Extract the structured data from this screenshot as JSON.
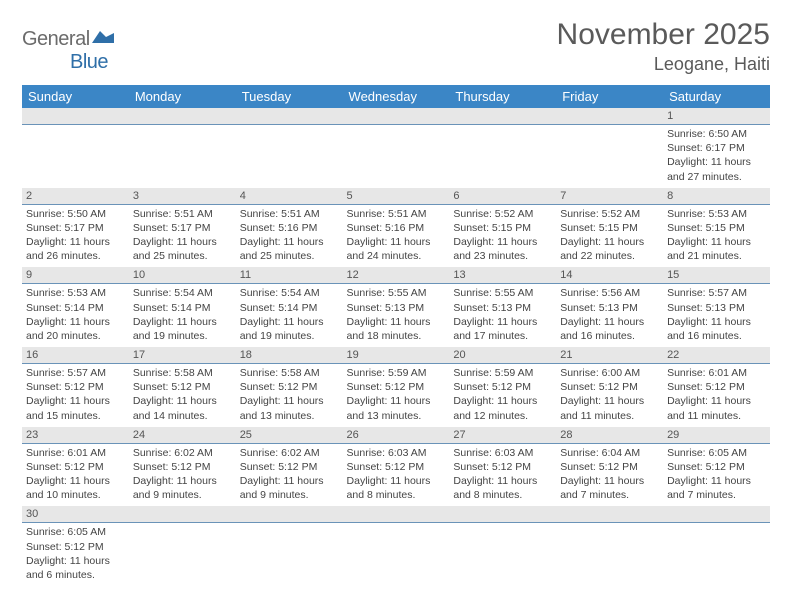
{
  "logo": {
    "text_part1": "General",
    "text_part2": "Blue",
    "icon_color": "#2f6fa8"
  },
  "title": {
    "month": "November 2025",
    "location": "Leogane, Haiti"
  },
  "header_bg": "#3b86c6",
  "daynum_bg": "#e7e7e7",
  "divider_color": "#6a93b8",
  "weekdays": [
    "Sunday",
    "Monday",
    "Tuesday",
    "Wednesday",
    "Thursday",
    "Friday",
    "Saturday"
  ],
  "weeks": [
    [
      null,
      null,
      null,
      null,
      null,
      null,
      {
        "n": "1",
        "sr": "Sunrise: 6:50 AM",
        "ss": "Sunset: 6:17 PM",
        "dl": "Daylight: 11 hours and 27 minutes."
      }
    ],
    [
      {
        "n": "2",
        "sr": "Sunrise: 5:50 AM",
        "ss": "Sunset: 5:17 PM",
        "dl": "Daylight: 11 hours and 26 minutes."
      },
      {
        "n": "3",
        "sr": "Sunrise: 5:51 AM",
        "ss": "Sunset: 5:17 PM",
        "dl": "Daylight: 11 hours and 25 minutes."
      },
      {
        "n": "4",
        "sr": "Sunrise: 5:51 AM",
        "ss": "Sunset: 5:16 PM",
        "dl": "Daylight: 11 hours and 25 minutes."
      },
      {
        "n": "5",
        "sr": "Sunrise: 5:51 AM",
        "ss": "Sunset: 5:16 PM",
        "dl": "Daylight: 11 hours and 24 minutes."
      },
      {
        "n": "6",
        "sr": "Sunrise: 5:52 AM",
        "ss": "Sunset: 5:15 PM",
        "dl": "Daylight: 11 hours and 23 minutes."
      },
      {
        "n": "7",
        "sr": "Sunrise: 5:52 AM",
        "ss": "Sunset: 5:15 PM",
        "dl": "Daylight: 11 hours and 22 minutes."
      },
      {
        "n": "8",
        "sr": "Sunrise: 5:53 AM",
        "ss": "Sunset: 5:15 PM",
        "dl": "Daylight: 11 hours and 21 minutes."
      }
    ],
    [
      {
        "n": "9",
        "sr": "Sunrise: 5:53 AM",
        "ss": "Sunset: 5:14 PM",
        "dl": "Daylight: 11 hours and 20 minutes."
      },
      {
        "n": "10",
        "sr": "Sunrise: 5:54 AM",
        "ss": "Sunset: 5:14 PM",
        "dl": "Daylight: 11 hours and 19 minutes."
      },
      {
        "n": "11",
        "sr": "Sunrise: 5:54 AM",
        "ss": "Sunset: 5:14 PM",
        "dl": "Daylight: 11 hours and 19 minutes."
      },
      {
        "n": "12",
        "sr": "Sunrise: 5:55 AM",
        "ss": "Sunset: 5:13 PM",
        "dl": "Daylight: 11 hours and 18 minutes."
      },
      {
        "n": "13",
        "sr": "Sunrise: 5:55 AM",
        "ss": "Sunset: 5:13 PM",
        "dl": "Daylight: 11 hours and 17 minutes."
      },
      {
        "n": "14",
        "sr": "Sunrise: 5:56 AM",
        "ss": "Sunset: 5:13 PM",
        "dl": "Daylight: 11 hours and 16 minutes."
      },
      {
        "n": "15",
        "sr": "Sunrise: 5:57 AM",
        "ss": "Sunset: 5:13 PM",
        "dl": "Daylight: 11 hours and 16 minutes."
      }
    ],
    [
      {
        "n": "16",
        "sr": "Sunrise: 5:57 AM",
        "ss": "Sunset: 5:12 PM",
        "dl": "Daylight: 11 hours and 15 minutes."
      },
      {
        "n": "17",
        "sr": "Sunrise: 5:58 AM",
        "ss": "Sunset: 5:12 PM",
        "dl": "Daylight: 11 hours and 14 minutes."
      },
      {
        "n": "18",
        "sr": "Sunrise: 5:58 AM",
        "ss": "Sunset: 5:12 PM",
        "dl": "Daylight: 11 hours and 13 minutes."
      },
      {
        "n": "19",
        "sr": "Sunrise: 5:59 AM",
        "ss": "Sunset: 5:12 PM",
        "dl": "Daylight: 11 hours and 13 minutes."
      },
      {
        "n": "20",
        "sr": "Sunrise: 5:59 AM",
        "ss": "Sunset: 5:12 PM",
        "dl": "Daylight: 11 hours and 12 minutes."
      },
      {
        "n": "21",
        "sr": "Sunrise: 6:00 AM",
        "ss": "Sunset: 5:12 PM",
        "dl": "Daylight: 11 hours and 11 minutes."
      },
      {
        "n": "22",
        "sr": "Sunrise: 6:01 AM",
        "ss": "Sunset: 5:12 PM",
        "dl": "Daylight: 11 hours and 11 minutes."
      }
    ],
    [
      {
        "n": "23",
        "sr": "Sunrise: 6:01 AM",
        "ss": "Sunset: 5:12 PM",
        "dl": "Daylight: 11 hours and 10 minutes."
      },
      {
        "n": "24",
        "sr": "Sunrise: 6:02 AM",
        "ss": "Sunset: 5:12 PM",
        "dl": "Daylight: 11 hours and 9 minutes."
      },
      {
        "n": "25",
        "sr": "Sunrise: 6:02 AM",
        "ss": "Sunset: 5:12 PM",
        "dl": "Daylight: 11 hours and 9 minutes."
      },
      {
        "n": "26",
        "sr": "Sunrise: 6:03 AM",
        "ss": "Sunset: 5:12 PM",
        "dl": "Daylight: 11 hours and 8 minutes."
      },
      {
        "n": "27",
        "sr": "Sunrise: 6:03 AM",
        "ss": "Sunset: 5:12 PM",
        "dl": "Daylight: 11 hours and 8 minutes."
      },
      {
        "n": "28",
        "sr": "Sunrise: 6:04 AM",
        "ss": "Sunset: 5:12 PM",
        "dl": "Daylight: 11 hours and 7 minutes."
      },
      {
        "n": "29",
        "sr": "Sunrise: 6:05 AM",
        "ss": "Sunset: 5:12 PM",
        "dl": "Daylight: 11 hours and 7 minutes."
      }
    ],
    [
      {
        "n": "30",
        "sr": "Sunrise: 6:05 AM",
        "ss": "Sunset: 5:12 PM",
        "dl": "Daylight: 11 hours and 6 minutes."
      },
      null,
      null,
      null,
      null,
      null,
      null
    ]
  ]
}
